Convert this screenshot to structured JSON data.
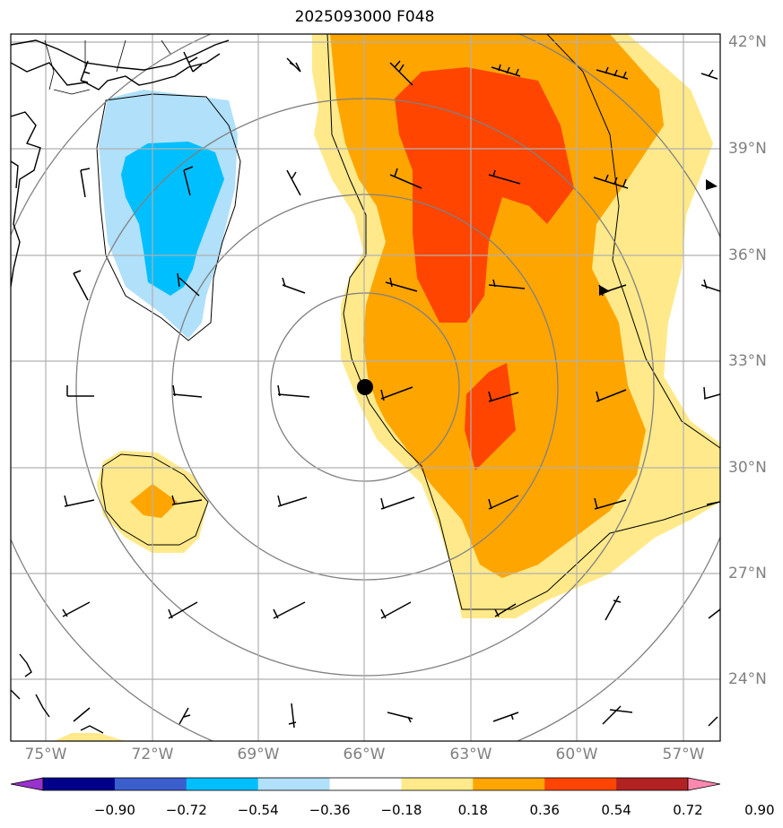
{
  "title": "2025093000 F048",
  "lat_labels": [
    "42°N",
    "39°N",
    "36°N",
    "33°N",
    "30°N",
    "27°N",
    "24°N"
  ],
  "lon_labels": [
    "75°W",
    "72°W",
    "69°W",
    "66°W",
    "63°W",
    "60°W",
    "57°W"
  ],
  "colorbar": {
    "ticks": [
      "−0.90",
      "−0.72",
      "−0.54",
      "−0.36",
      "−0.18",
      "0.18",
      "0.36",
      "0.54",
      "0.72",
      "0.90"
    ],
    "colors": [
      "#9932cc",
      "#00008b",
      "#3a5fcd",
      "#00bfff",
      "#b0e0fa",
      "#ffffff",
      "#ffe98a",
      "#ffa500",
      "#ff4500",
      "#b22222",
      "#ff88b0"
    ]
  },
  "marker": {
    "name": "storm-center",
    "lat": 32.3,
    "lon": -66.0
  },
  "colors": {
    "neg_light": "#b0e0fa",
    "neg_mid": "#00bfff",
    "pos_light": "#ffe98a",
    "pos_mid": "#ffa500",
    "pos_high": "#ff4500"
  }
}
